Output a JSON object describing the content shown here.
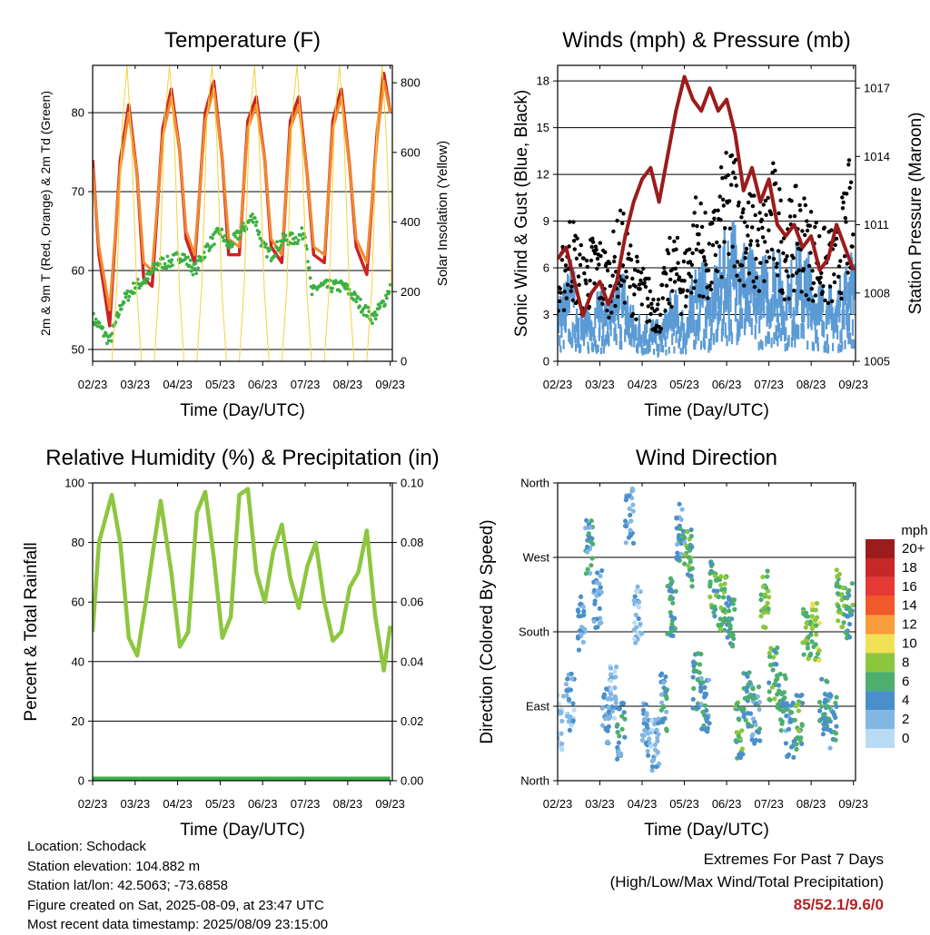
{
  "colors": {
    "temp_2m": "#cc2222",
    "temp_9m": "#f08a30",
    "dewpoint": "#3cb043",
    "solar": "#f2d33c",
    "wind": "#5b9bd5",
    "gust": "#000000",
    "pressure": "#9b1c1c",
    "rh": "#8dc63f",
    "precip": "#3cb043"
  },
  "chart_data": [
    {
      "type": "line",
      "title": "Temperature (F)",
      "xlabel": "Time (Day/UTC)",
      "ylabel": "2m & 9m T (Red, Orange) & 2m Td (Green)",
      "y2label": "Solar Insolation (Yellow)",
      "x_ticks": [
        "02/23",
        "03/23",
        "04/23",
        "05/23",
        "06/23",
        "07/23",
        "08/23",
        "09/23"
      ],
      "xlim": [
        0,
        7.05
      ],
      "ylim": [
        48.5,
        86
      ],
      "y_ticks": [
        50,
        60,
        70,
        80
      ],
      "y2lim": [
        0,
        850
      ],
      "y2_ticks": [
        0,
        200,
        400,
        600,
        800
      ],
      "grid": true,
      "series": [
        {
          "key": "temp_2m",
          "axis": "y",
          "x": [
            0,
            0.15,
            0.4,
            0.65,
            0.85,
            1.05,
            1.2,
            1.4,
            1.65,
            1.85,
            2.05,
            2.2,
            2.4,
            2.65,
            2.85,
            3.05,
            3.2,
            3.45,
            3.65,
            3.85,
            4.05,
            4.2,
            4.45,
            4.65,
            4.85,
            5.05,
            5.2,
            5.45,
            5.65,
            5.85,
            6.05,
            6.2,
            6.45,
            6.7,
            6.85,
            7.0
          ],
          "y": [
            74,
            62,
            53,
            74,
            81,
            72,
            59,
            58,
            78,
            83,
            75,
            64,
            61,
            80,
            84,
            74,
            62,
            62,
            79,
            82,
            74,
            63,
            61,
            79,
            82,
            72,
            62,
            61,
            79,
            83,
            73,
            63,
            59.5,
            78,
            85,
            80
          ]
        },
        {
          "key": "temp_9m",
          "axis": "y",
          "x": [
            0,
            0.15,
            0.4,
            0.65,
            0.85,
            1.05,
            1.2,
            1.4,
            1.65,
            1.85,
            2.05,
            2.2,
            2.4,
            2.65,
            2.85,
            3.05,
            3.2,
            3.45,
            3.65,
            3.85,
            4.05,
            4.2,
            4.45,
            4.65,
            4.85,
            5.05,
            5.2,
            5.45,
            5.65,
            5.85,
            6.05,
            6.2,
            6.45,
            6.7,
            6.85,
            7.0
          ],
          "y": [
            73,
            63,
            55,
            73,
            80,
            72,
            61,
            60,
            77,
            82,
            75,
            65,
            62,
            79,
            83,
            74,
            64,
            63,
            78,
            81,
            74,
            64,
            62,
            78,
            81,
            72,
            63,
            62,
            78,
            82,
            73,
            64,
            61,
            77,
            84,
            80
          ]
        },
        {
          "key": "dewpoint",
          "axis": "y",
          "x": [
            0,
            0.15,
            0.4,
            0.7,
            1.0,
            1.3,
            1.55,
            1.8,
            2.1,
            2.4,
            2.7,
            3.0,
            3.2,
            3.5,
            3.8,
            4.0,
            4.2,
            4.5,
            4.8,
            5.0,
            5.15,
            5.3,
            5.6,
            5.9,
            6.1,
            6.4,
            6.6,
            6.85,
            7.0
          ],
          "y": [
            54,
            53,
            51,
            56,
            58,
            59,
            61,
            61,
            62,
            60,
            63,
            65,
            63,
            65,
            67,
            63,
            62,
            64,
            64,
            65,
            57,
            58,
            58,
            58,
            57,
            55,
            54,
            56,
            58
          ]
        },
        {
          "key": "solar",
          "axis": "y2",
          "x": [
            0.0,
            0.45,
            0.57,
            0.69,
            0.81,
            0.92,
            1.04,
            1.15,
            1.45,
            1.57,
            1.69,
            1.81,
            1.92,
            2.04,
            2.15,
            2.45,
            2.57,
            2.69,
            2.81,
            2.92,
            3.04,
            3.15,
            3.45,
            3.57,
            3.69,
            3.81,
            3.92,
            4.04,
            4.15,
            4.45,
            4.57,
            4.69,
            4.81,
            4.92,
            5.04,
            5.15,
            5.45,
            5.57,
            5.69,
            5.81,
            5.92,
            6.04,
            6.15,
            6.45,
            6.57,
            6.69,
            6.81,
            6.92,
            7.04
          ],
          "y": [
            0,
            0,
            210,
            670,
            850,
            620,
            200,
            0,
            0,
            230,
            690,
            850,
            650,
            210,
            0,
            0,
            220,
            700,
            850,
            640,
            200,
            0,
            0,
            230,
            690,
            850,
            620,
            200,
            0,
            0,
            210,
            700,
            850,
            640,
            200,
            0,
            0,
            220,
            690,
            850,
            630,
            200,
            0,
            0,
            210,
            680,
            850,
            620,
            200
          ]
        }
      ]
    },
    {
      "type": "scatter",
      "title": "Winds (mph) & Pressure (mb)",
      "xlabel": "Time (Day/UTC)",
      "ylabel": "Sonic Wind & Gust (Blue, Black)",
      "y2label": "Station Pressure (Maroon)",
      "x_ticks": [
        "02/23",
        "03/23",
        "04/23",
        "05/23",
        "06/23",
        "07/23",
        "08/23",
        "09/23"
      ],
      "xlim": [
        0,
        7.05
      ],
      "ylim": [
        0,
        19
      ],
      "y_ticks": [
        0,
        3,
        6,
        9,
        12,
        15,
        18
      ],
      "y2lim": [
        1005,
        1018
      ],
      "y2_ticks": [
        1005,
        1008,
        1011,
        1014,
        1017
      ],
      "grid": true,
      "series": [
        {
          "key": "wind",
          "axis": "y",
          "x": [
            0,
            0.3,
            0.6,
            0.9,
            1.2,
            1.5,
            1.8,
            2.1,
            2.4,
            2.7,
            3.0,
            3.3,
            3.6,
            3.9,
            4.2,
            4.5,
            4.8,
            5.1,
            5.4,
            5.7,
            6.0,
            6.3,
            6.6,
            6.9,
            7.0
          ],
          "y": [
            2.5,
            4,
            2,
            3,
            2.5,
            4,
            2,
            2,
            1.5,
            3,
            2,
            4.5,
            3,
            5,
            6,
            4.5,
            4,
            5,
            3.5,
            5,
            4,
            3,
            3,
            4.5,
            4
          ]
        },
        {
          "key": "gust",
          "axis": "y",
          "x": [
            0,
            0.3,
            0.6,
            0.9,
            1.2,
            1.5,
            1.8,
            2.1,
            2.4,
            2.7,
            3.0,
            3.3,
            3.6,
            3.9,
            4.2,
            4.5,
            4.8,
            5.1,
            5.4,
            5.7,
            6.0,
            6.3,
            6.6,
            6.9,
            7.0
          ],
          "y": [
            4,
            7,
            5,
            6,
            5,
            7,
            5,
            4,
            3,
            6,
            5,
            8,
            6,
            9,
            10,
            8,
            7,
            9,
            7,
            8,
            7,
            6,
            6,
            9,
            7
          ]
        },
        {
          "key": "pressure",
          "axis": "y2",
          "x": [
            0,
            0.2,
            0.4,
            0.6,
            0.8,
            1.0,
            1.2,
            1.4,
            1.6,
            1.8,
            2.0,
            2.2,
            2.4,
            2.6,
            2.8,
            3.0,
            3.2,
            3.4,
            3.6,
            3.8,
            4.0,
            4.2,
            4.4,
            4.6,
            4.8,
            5.0,
            5.2,
            5.4,
            5.6,
            5.8,
            6.0,
            6.2,
            6.4,
            6.6,
            6.8,
            7.0
          ],
          "y": [
            1009.5,
            1010,
            1008.5,
            1007,
            1008,
            1008.5,
            1007.5,
            1008.5,
            1010.5,
            1012,
            1013,
            1013.5,
            1012,
            1014,
            1016,
            1017.5,
            1016.5,
            1016,
            1017,
            1016,
            1016.5,
            1015,
            1012.5,
            1013.5,
            1012,
            1013,
            1011,
            1010.5,
            1011,
            1010,
            1010.5,
            1009,
            1009.5,
            1011,
            1010,
            1009
          ]
        }
      ]
    },
    {
      "type": "line",
      "title": "Relative Humidity (%) & Precipitation (in)",
      "xlabel": "Time (Day/UTC)",
      "ylabel": "Percent & Total Rainfall",
      "x_ticks": [
        "02/23",
        "03/23",
        "04/23",
        "05/23",
        "06/23",
        "07/23",
        "08/23",
        "09/23"
      ],
      "xlim": [
        0,
        7.05
      ],
      "ylim": [
        0,
        100
      ],
      "y_ticks": [
        0,
        20,
        40,
        60,
        80,
        100
      ],
      "y2lim": [
        0,
        0.1
      ],
      "y2_ticks": [
        "0.00",
        "0.02",
        "0.04",
        "0.06",
        "0.08",
        "0.10"
      ],
      "grid": true,
      "series": [
        {
          "key": "rh",
          "axis": "y",
          "x": [
            0,
            0.15,
            0.45,
            0.65,
            0.85,
            1.05,
            1.25,
            1.45,
            1.6,
            1.85,
            2.05,
            2.25,
            2.45,
            2.65,
            2.85,
            3.05,
            3.25,
            3.45,
            3.65,
            3.85,
            4.05,
            4.25,
            4.45,
            4.65,
            4.85,
            5.05,
            5.25,
            5.45,
            5.65,
            5.85,
            6.05,
            6.25,
            6.45,
            6.65,
            6.85,
            7.0
          ],
          "y": [
            50,
            80,
            96,
            80,
            48,
            42,
            60,
            80,
            94,
            70,
            45,
            50,
            90,
            97,
            75,
            48,
            55,
            96,
            98,
            70,
            60,
            77,
            86,
            68,
            58,
            72,
            80,
            60,
            47,
            50,
            65,
            70,
            84,
            55,
            37,
            52
          ]
        },
        {
          "key": "precip",
          "axis": "y2",
          "x": [
            0,
            7.0
          ],
          "y": [
            0,
            0
          ]
        }
      ]
    },
    {
      "type": "scatter",
      "title": "Wind Direction",
      "xlabel": "Time (Day/UTC)",
      "ylabel": "Direction (Colored By Speed)",
      "x_ticks": [
        "02/23",
        "03/23",
        "04/23",
        "05/23",
        "06/23",
        "07/23",
        "08/23",
        "09/23"
      ],
      "xlim": [
        0,
        7.05
      ],
      "ylim": [
        0,
        360
      ],
      "y_ticks": [
        "North",
        "East",
        "South",
        "West",
        "North"
      ],
      "grid": true,
      "legend_title": "mph",
      "legend_placement": "right",
      "legend_labels": [
        "20+",
        "18",
        "16",
        "14",
        "12",
        "10",
        "8",
        "6",
        "4",
        "2",
        "0"
      ],
      "legend_colors": [
        "#9b1c1c",
        "#c62828",
        "#e53935",
        "#f05a28",
        "#f89c3c",
        "#f0e056",
        "#8cc63f",
        "#4caf6d",
        "#4a8fca",
        "#82b6e3",
        "#b8dcf5"
      ],
      "series": [
        {
          "name": "",
          "x": [
            0.05,
            0.3,
            0.55,
            0.75,
            0.95,
            1.15,
            1.3,
            1.5,
            1.7,
            1.9,
            2.1,
            2.3,
            2.5,
            2.7,
            2.9,
            3.1,
            3.3,
            3.5,
            3.7,
            3.9,
            4.1,
            4.3,
            4.5,
            4.7,
            4.9,
            5.1,
            5.3,
            5.5,
            5.7,
            5.9,
            6.1,
            6.3,
            6.5,
            6.7,
            6.9
          ],
          "y": [
            70,
            95,
            190,
            280,
            220,
            80,
            110,
            60,
            320,
            200,
            60,
            40,
            95,
            210,
            300,
            270,
            120,
            90,
            230,
            215,
            190,
            60,
            100,
            80,
            220,
            130,
            95,
            60,
            70,
            180,
            180,
            90,
            70,
            220,
            205
          ],
          "speed": [
            1,
            2,
            3,
            4,
            3,
            3,
            2,
            4,
            3,
            2,
            3,
            2,
            4,
            5,
            4,
            6,
            5,
            4,
            6,
            7,
            5,
            6,
            5,
            4,
            7,
            6,
            5,
            4,
            6,
            7,
            8,
            5,
            4,
            7,
            6
          ]
        }
      ]
    }
  ],
  "info": {
    "location": "Location: Schodack",
    "elevation": "Station elevation: 104.882 m",
    "latlon": "Station lat/lon: 42.5063; -73.6858",
    "created": "Figure created on Sat, 2025-08-09, at 23:47 UTC",
    "recent": "Most recent data timestamp: 2025/08/09 23:15:00"
  },
  "extremes": {
    "heading": "Extremes For Past 7 Days",
    "subheading": "(High/Low/Max Wind/Total Precipitation)",
    "values": "85/52.1/9.6/0"
  }
}
